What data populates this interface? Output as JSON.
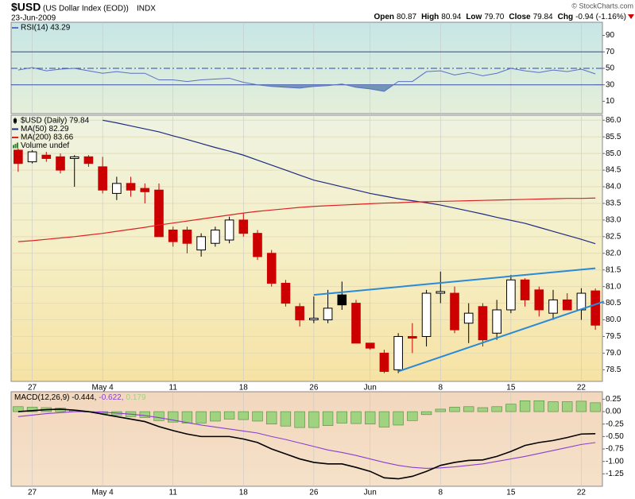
{
  "header": {
    "symbol": "$USD",
    "name": "(US Dollar Index (EOD))",
    "exchange": "INDX",
    "date": "23-Jun-2009",
    "credit": "© StockCharts.com",
    "quote": [
      {
        "label": "Open",
        "value": "80.87"
      },
      {
        "label": "High",
        "value": "80.94"
      },
      {
        "label": "Low",
        "value": "79.70"
      },
      {
        "label": "Close",
        "value": "79.84"
      },
      {
        "label": "Chg",
        "value": "-0.94 (-1.16%)"
      }
    ]
  },
  "chart_data": [
    {
      "type": "line",
      "xlabels": false,
      "categories": [
        null,
        "27",
        null,
        null,
        null,
        null,
        "May 4",
        null,
        null,
        null,
        null,
        "11",
        null,
        null,
        null,
        null,
        "18",
        null,
        null,
        null,
        null,
        "26",
        null,
        null,
        null,
        "Jun",
        null,
        null,
        null,
        null,
        "8",
        null,
        null,
        null,
        null,
        "15",
        null,
        null,
        null,
        null,
        "22",
        null
      ],
      "ylim": [
        -5,
        106
      ],
      "yticks": [
        90,
        70,
        50,
        30,
        10
      ],
      "reference_lines": [
        {
          "value": 70,
          "color": "#3344aa",
          "style": "solid"
        },
        {
          "value": 50,
          "color": "#3344aa",
          "style": "dashdot"
        },
        {
          "value": 30,
          "color": "#3344aa",
          "style": "solid"
        }
      ],
      "series": [
        {
          "name": "RSI(14) 43.29",
          "color": "#5b6fc0",
          "shade_below": 30,
          "shade_color": "#6f94b4",
          "values": [
            48,
            51,
            47,
            49,
            50,
            47,
            44,
            46,
            44,
            44,
            36,
            36,
            34,
            36,
            37,
            38,
            33,
            30,
            28,
            27,
            26,
            28,
            29,
            31,
            27,
            25,
            22,
            34,
            34,
            46,
            47,
            42,
            45,
            41,
            44,
            50,
            47,
            45,
            48,
            46,
            49,
            43.29
          ]
        }
      ]
    },
    {
      "type": "candlestick",
      "grid": true,
      "grid_color": "#e6dcb4",
      "categories": [
        null,
        "27",
        null,
        null,
        null,
        null,
        "May 4",
        null,
        null,
        null,
        null,
        "11",
        null,
        null,
        null,
        null,
        "18",
        null,
        null,
        null,
        null,
        "26",
        null,
        null,
        null,
        "Jun",
        null,
        null,
        null,
        null,
        "8",
        null,
        null,
        null,
        null,
        "15",
        null,
        null,
        null,
        null,
        "22",
        null
      ],
      "ylim": [
        78.15,
        86.15
      ],
      "yticks": [
        {
          "value": 86,
          "label": "86.0"
        },
        85.5,
        {
          "value": 85,
          "label": "85.0"
        },
        84.5,
        {
          "value": 84,
          "label": "84.0"
        },
        83.5,
        {
          "value": 83,
          "label": "83.0"
        },
        82.5,
        {
          "value": 82,
          "label": "82.0"
        },
        81.5,
        {
          "value": 81,
          "label": "81.0"
        },
        80.5,
        {
          "value": 80,
          "label": "80.0"
        },
        79.5,
        {
          "value": 79,
          "label": "79.0"
        },
        78.5
      ],
      "series": [
        {
          "name": "$USD (Daily) 79.84",
          "type": "candlestick",
          "color": "#000000",
          "rising_color": "#000000",
          "falling_color": "#cc0000",
          "open": [
            85.1,
            84.75,
            84.95,
            84.9,
            84.85,
            84.9,
            84.6,
            83.8,
            84.1,
            83.95,
            83.9,
            82.7,
            82.7,
            82.1,
            82.3,
            82.4,
            83.0,
            82.6,
            82.0,
            81.1,
            80.4,
            80.0,
            80.0,
            80.75,
            80.5,
            79.3,
            79.0,
            78.5,
            79.5,
            79.5,
            80.8,
            80.8,
            79.9,
            80.4,
            79.6,
            80.3,
            81.2,
            80.9,
            80.2,
            80.6,
            80.3,
            80.87
          ],
          "high": [
            85.15,
            85.1,
            85.05,
            85.0,
            84.95,
            84.95,
            84.9,
            84.3,
            84.3,
            84.1,
            84.1,
            82.8,
            82.8,
            82.6,
            82.8,
            83.1,
            83.2,
            82.7,
            82.1,
            81.2,
            80.5,
            80.7,
            80.9,
            81.15,
            80.6,
            79.3,
            79.1,
            79.6,
            79.9,
            80.9,
            81.45,
            81.0,
            80.5,
            80.5,
            80.6,
            81.35,
            81.25,
            81.0,
            80.9,
            80.8,
            80.95,
            80.94
          ],
          "low": [
            84.45,
            84.7,
            84.75,
            84.4,
            84.0,
            84.6,
            83.8,
            83.6,
            83.7,
            83.5,
            82.5,
            82.2,
            82.0,
            81.9,
            82.2,
            82.3,
            82.5,
            81.8,
            81.0,
            80.4,
            79.8,
            79.9,
            79.9,
            80.3,
            79.3,
            79.1,
            78.4,
            78.4,
            79.0,
            79.2,
            80.5,
            79.6,
            79.3,
            79.2,
            79.4,
            80.2,
            80.4,
            80.1,
            80.0,
            80.3,
            80.0,
            79.7
          ],
          "close": [
            84.7,
            85.05,
            84.85,
            84.5,
            84.9,
            84.7,
            83.9,
            84.1,
            83.9,
            83.85,
            82.5,
            82.35,
            82.3,
            82.5,
            82.7,
            83.0,
            82.6,
            81.9,
            81.1,
            80.5,
            80.0,
            80.05,
            80.35,
            80.45,
            79.3,
            79.15,
            78.45,
            79.5,
            79.45,
            80.8,
            80.85,
            79.7,
            80.2,
            79.4,
            80.3,
            81.2,
            80.6,
            80.3,
            80.6,
            80.3,
            80.8,
            79.84
          ]
        },
        {
          "name": "MA(50) 82.29",
          "type": "line",
          "color": "#1f2a80",
          "values": [
            null,
            null,
            null,
            null,
            null,
            null,
            86.0,
            85.92,
            85.83,
            85.74,
            85.65,
            85.53,
            85.42,
            85.3,
            85.18,
            85.07,
            84.95,
            84.8,
            84.65,
            84.5,
            84.35,
            84.2,
            84.1,
            84.0,
            83.9,
            83.8,
            83.72,
            83.64,
            83.58,
            83.52,
            83.45,
            83.36,
            83.27,
            83.18,
            83.08,
            82.99,
            82.9,
            82.78,
            82.66,
            82.54,
            82.42,
            82.29
          ]
        },
        {
          "name": "MA(200) 83.66",
          "type": "line",
          "color": "#dd2222",
          "values": [
            82.35,
            82.38,
            82.42,
            82.46,
            82.5,
            82.55,
            82.6,
            82.66,
            82.72,
            82.78,
            82.85,
            82.91,
            82.97,
            83.03,
            83.09,
            83.15,
            83.21,
            83.26,
            83.3,
            83.34,
            83.38,
            83.41,
            83.43,
            83.45,
            83.47,
            83.49,
            83.51,
            83.52,
            83.54,
            83.55,
            83.56,
            83.57,
            83.58,
            83.59,
            83.6,
            83.61,
            83.62,
            83.63,
            83.64,
            83.65,
            83.65,
            83.66
          ]
        }
      ],
      "annotations": [
        {
          "text": "Volume undef",
          "color": "#2e8b2e"
        }
      ],
      "trendlines": [
        {
          "color": "#2a8ad8",
          "x": [
            21,
            41
          ],
          "values": [
            80.75,
            81.55
          ]
        },
        {
          "color": "#2a8ad8",
          "x": [
            27,
            41.6
          ],
          "values": [
            78.45,
            80.55
          ]
        }
      ]
    },
    {
      "type": "combo",
      "categories": [
        null,
        "27",
        null,
        null,
        null,
        null,
        "May 4",
        null,
        null,
        null,
        null,
        "11",
        null,
        null,
        null,
        null,
        "18",
        null,
        null,
        null,
        null,
        "26",
        null,
        null,
        null,
        "Jun",
        null,
        null,
        null,
        null,
        "8",
        null,
        null,
        null,
        null,
        "15",
        null,
        null,
        null,
        null,
        "22",
        null
      ],
      "ylim": [
        -1.5,
        0.4
      ],
      "yticks": [
        0.25,
        {
          "value": 0,
          "label": "0.00"
        },
        -0.25,
        {
          "value": -0.5,
          "label": "-0.50"
        },
        -0.75,
        {
          "value": -1,
          "label": "-1.00"
        },
        -1.25
      ],
      "series": [
        {
          "name": "0.179",
          "type": "bar",
          "color": "#9fd37f",
          "edge_color": "#4e8a3a",
          "values": [
            0.1,
            0.09,
            0.08,
            0.07,
            0.03,
            0,
            -0.04,
            -0.07,
            -0.1,
            -0.12,
            -0.18,
            -0.21,
            -0.23,
            -0.23,
            -0.19,
            -0.15,
            -0.16,
            -0.19,
            -0.25,
            -0.29,
            -0.32,
            -0.32,
            -0.28,
            -0.23,
            -0.24,
            -0.25,
            -0.31,
            -0.27,
            -0.18,
            -0.06,
            0.05,
            0.09,
            0.1,
            0.08,
            0.1,
            0.15,
            0.22,
            0.22,
            0.2,
            0.2,
            0.21,
            0.179
          ]
        },
        {
          "name": "-0.622,",
          "type": "line",
          "color": "#8a3fd0",
          "values": [
            -0.1,
            -0.07,
            -0.04,
            -0.02,
            0.0,
            0.0,
            -0.01,
            -0.03,
            -0.05,
            -0.08,
            -0.12,
            -0.17,
            -0.22,
            -0.27,
            -0.31,
            -0.35,
            -0.39,
            -0.43,
            -0.5,
            -0.56,
            -0.63,
            -0.7,
            -0.77,
            -0.82,
            -0.88,
            -0.95,
            -1.02,
            -1.08,
            -1.12,
            -1.14,
            -1.13,
            -1.11,
            -1.08,
            -1.05,
            -1.0,
            -0.95,
            -0.9,
            -0.84,
            -0.78,
            -0.72,
            -0.66,
            -0.622
          ]
        },
        {
          "name": "MACD(12,26,9) -0.444,",
          "type": "line",
          "color": "#000000",
          "values": [
            0,
            0.02,
            0.04,
            0.05,
            0.03,
            0.0,
            -0.05,
            -0.1,
            -0.15,
            -0.2,
            -0.3,
            -0.38,
            -0.45,
            -0.5,
            -0.5,
            -0.5,
            -0.55,
            -0.62,
            -0.75,
            -0.85,
            -0.95,
            -1.02,
            -1.05,
            -1.05,
            -1.12,
            -1.2,
            -1.33,
            -1.35,
            -1.3,
            -1.2,
            -1.08,
            -1.02,
            -0.98,
            -0.97,
            -0.9,
            -0.8,
            -0.68,
            -0.62,
            -0.58,
            -0.52,
            -0.45,
            -0.444
          ]
        }
      ],
      "legend_order": [
        2,
        1,
        0
      ]
    }
  ]
}
